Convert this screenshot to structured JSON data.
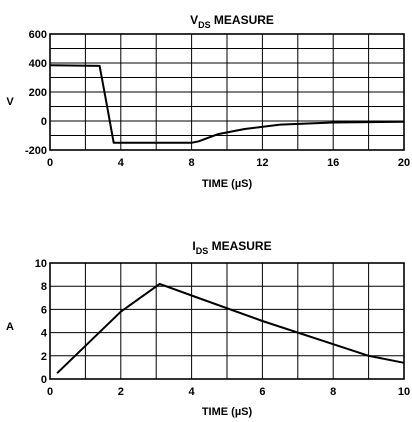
{
  "chart_data": [
    {
      "type": "line",
      "title_main": "V",
      "title_sub": "DS",
      "title_rest": " MEASURE",
      "xlabel": "TIME (µS)",
      "ylabel": "V",
      "xlim": [
        0,
        20
      ],
      "ylim": [
        -200,
        600
      ],
      "xticks": [
        0,
        4,
        8,
        12,
        16,
        20
      ],
      "yticks": [
        600,
        400,
        200,
        0,
        -200
      ],
      "grid": true,
      "series": [
        {
          "x": [
            0,
            2.8,
            3.2,
            3.6,
            4,
            6,
            8,
            8.4,
            9.5,
            11,
            13,
            16,
            20
          ],
          "values": [
            385,
            380,
            120,
            -150,
            -150,
            -150,
            -150,
            -140,
            -90,
            -55,
            -25,
            -10,
            -5
          ]
        }
      ]
    },
    {
      "type": "line",
      "title_main": "I",
      "title_sub": "DS",
      "title_rest": " MEASURE",
      "xlabel": "TIME (µS)",
      "ylabel": "A",
      "xlim": [
        0,
        10
      ],
      "ylim": [
        0,
        10
      ],
      "xticks": [
        0,
        2,
        4,
        6,
        8,
        10
      ],
      "yticks": [
        10,
        8,
        6,
        4,
        2,
        0
      ],
      "grid": true,
      "series": [
        {
          "x": [
            0.2,
            2,
            3.1,
            4,
            6,
            8,
            9,
            10
          ],
          "values": [
            0.5,
            5.8,
            8.2,
            7.2,
            5.0,
            3.0,
            2.0,
            1.4
          ]
        }
      ]
    }
  ]
}
